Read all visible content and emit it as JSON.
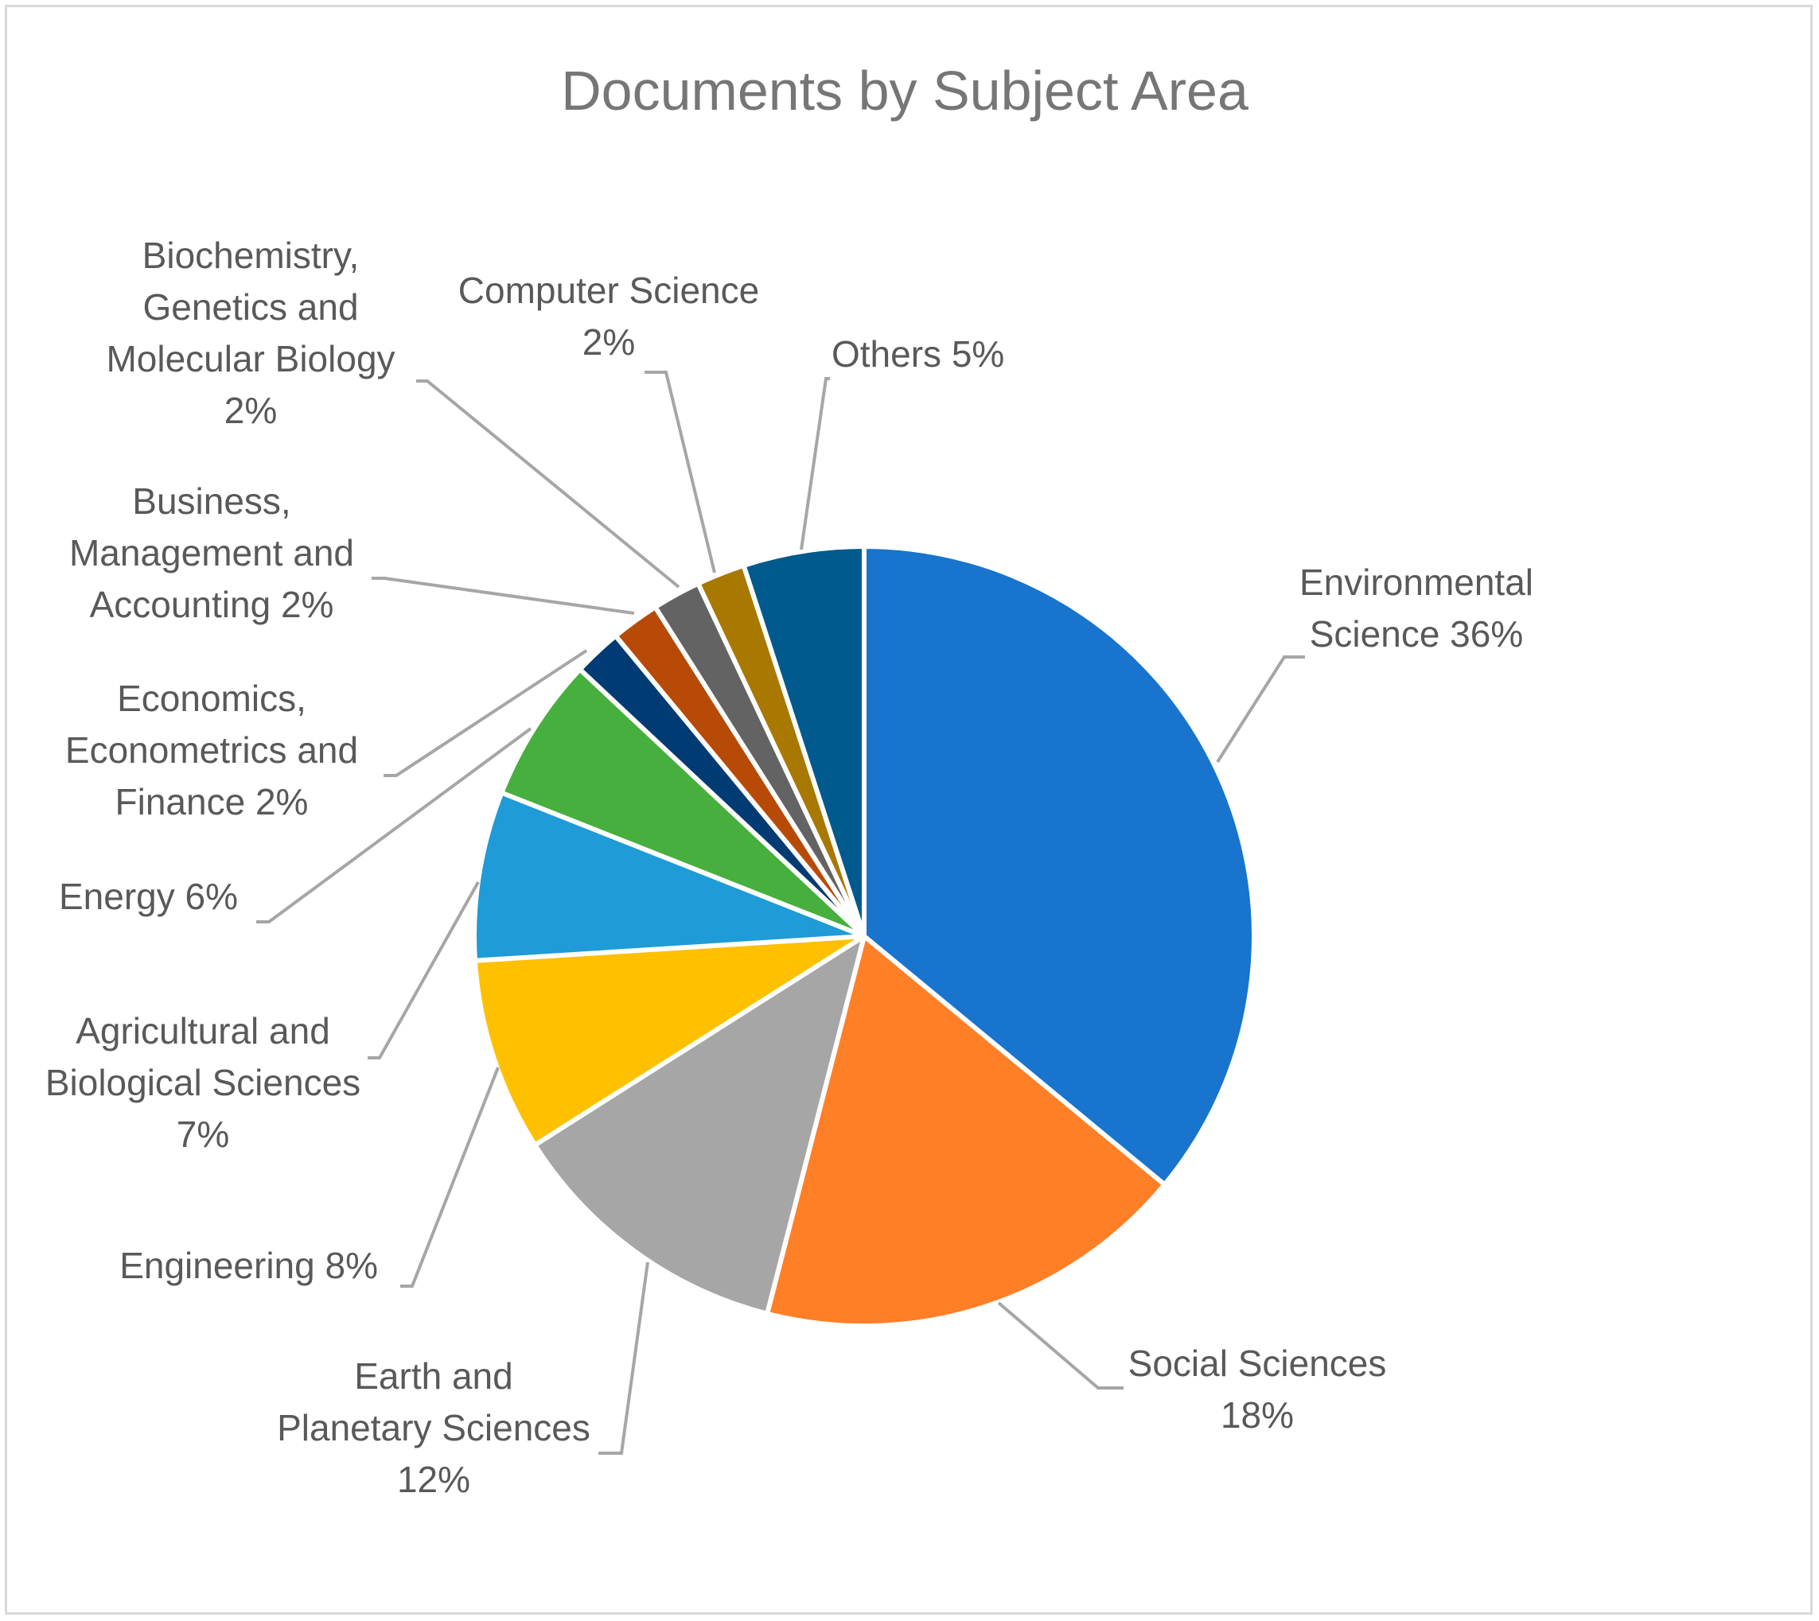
{
  "chart_data": {
    "type": "pie",
    "title": "Documents by Subject Area",
    "slices": [
      {
        "name": "Environmental Science",
        "value": 36,
        "label": [
          "Environmental",
          "Science 36%"
        ],
        "color": "#1874CD"
      },
      {
        "name": "Social Sciences",
        "value": 18,
        "label": [
          "Social Sciences",
          "18%"
        ],
        "color": "#FF7F27"
      },
      {
        "name": "Earth and Planetary Sciences",
        "value": 12,
        "label": [
          "Earth and",
          "Planetary Sciences",
          "12%"
        ],
        "color": "#A6A6A6"
      },
      {
        "name": "Engineering",
        "value": 8,
        "label": [
          "Engineering 8%"
        ],
        "color": "#FFC000"
      },
      {
        "name": "Agricultural and Biological Sciences",
        "value": 7,
        "label": [
          "Agricultural and",
          "Biological Sciences",
          "7%"
        ],
        "color": "#1F9BD7"
      },
      {
        "name": "Energy",
        "value": 6,
        "label": [
          "Energy 6%"
        ],
        "color": "#46AF3E"
      },
      {
        "name": "Economics, Econometrics and Finance",
        "value": 2,
        "label": [
          "Economics,",
          "Econometrics and",
          "Finance 2%"
        ],
        "color": "#003B73"
      },
      {
        "name": "Business, Management and Accounting",
        "value": 2,
        "label": [
          "Business,",
          "Management and",
          "Accounting 2%"
        ],
        "color": "#B84A08"
      },
      {
        "name": "Biochemistry, Genetics and Molecular Biology",
        "value": 2,
        "label": [
          "Biochemistry,",
          "Genetics and",
          "Molecular Biology",
          "2%"
        ],
        "color": "#636363"
      },
      {
        "name": "Computer Science",
        "value": 2,
        "label": [
          "Computer Science",
          "2%"
        ],
        "color": "#A97800"
      },
      {
        "name": "Others",
        "value": 5,
        "label": [
          "Others 5%"
        ],
        "color": "#005A8E"
      }
    ]
  }
}
